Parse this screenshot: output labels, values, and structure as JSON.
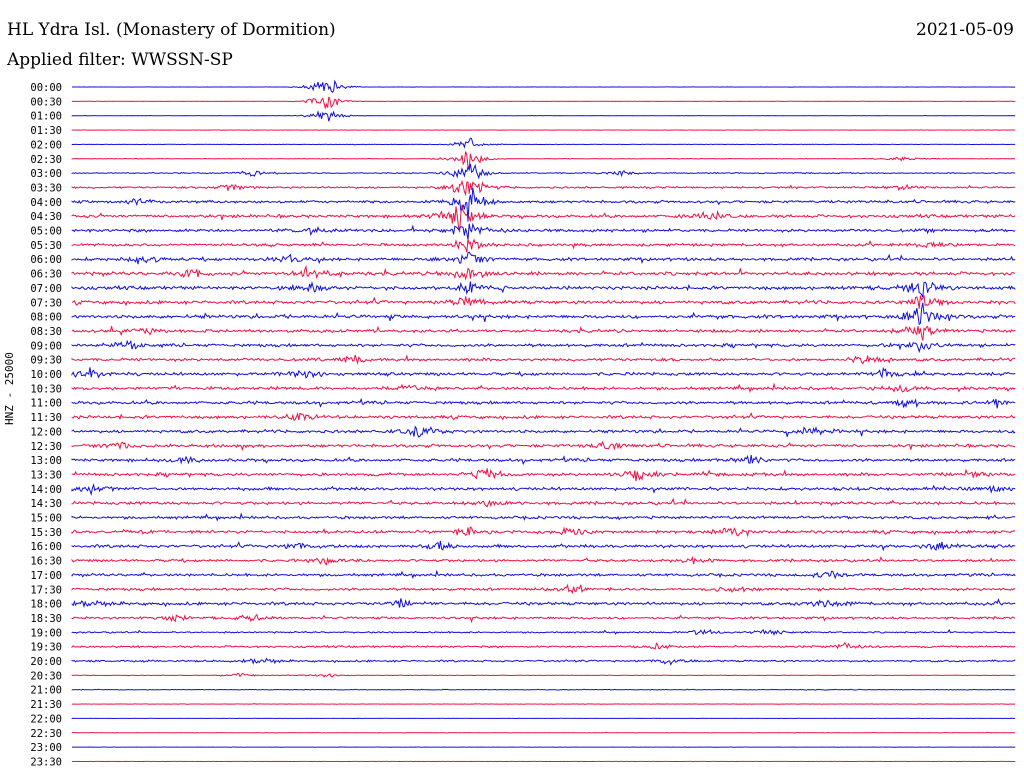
{
  "header": {
    "station": "HL Ydra Isl. (Monastery of Dormition)",
    "filter": "Applied filter: WWSSN-SP",
    "date": "2021-05-09",
    "channel_label": "HNZ - 25000"
  },
  "colors": {
    "blue_trace": "#1010d8",
    "red_trace": "#ee1144"
  },
  "chart_data": {
    "type": "line",
    "title": "HL Ydra Isl. (Monastery of Dormition)",
    "subtitle": "Applied filter: WWSSN-SP",
    "ylabel": "HNZ - 25000",
    "grid": false,
    "legend": "none",
    "rows": [
      {
        "label": "00:00",
        "color": "blue",
        "level": 0.05,
        "events": [
          {
            "x": 0.27,
            "amp": 14
          }
        ]
      },
      {
        "label": "00:30",
        "color": "red",
        "level": 0.05,
        "events": [
          {
            "x": 0.27,
            "amp": 12
          }
        ]
      },
      {
        "label": "01:00",
        "color": "blue",
        "level": 0.08,
        "events": [
          {
            "x": 0.27,
            "amp": 10
          }
        ]
      },
      {
        "label": "01:30",
        "color": "red",
        "level": 0.06,
        "events": []
      },
      {
        "label": "02:00",
        "color": "blue",
        "level": 0.1,
        "events": [
          {
            "x": 0.42,
            "amp": 8
          }
        ]
      },
      {
        "label": "02:30",
        "color": "red",
        "level": 0.15,
        "events": [
          {
            "x": 0.42,
            "amp": 14
          },
          {
            "x": 0.88,
            "amp": 4
          }
        ]
      },
      {
        "label": "03:00",
        "color": "blue",
        "level": 0.3,
        "events": [
          {
            "x": 0.19,
            "amp": 4
          },
          {
            "x": 0.42,
            "amp": 16
          },
          {
            "x": 0.58,
            "amp": 4
          }
        ]
      },
      {
        "label": "03:30",
        "color": "red",
        "level": 0.5,
        "events": [
          {
            "x": 0.17,
            "amp": 5
          },
          {
            "x": 0.42,
            "amp": 18
          },
          {
            "x": 0.88,
            "amp": 3
          }
        ]
      },
      {
        "label": "04:00",
        "color": "blue",
        "level": 0.7,
        "events": [
          {
            "x": 0.07,
            "amp": 5
          },
          {
            "x": 0.42,
            "amp": 22
          }
        ]
      },
      {
        "label": "04:30",
        "color": "red",
        "level": 0.8,
        "events": [
          {
            "x": 0.41,
            "amp": 20
          },
          {
            "x": 0.68,
            "amp": 8
          }
        ]
      },
      {
        "label": "05:00",
        "color": "blue",
        "level": 0.8,
        "events": [
          {
            "x": 0.26,
            "amp": 6
          },
          {
            "x": 0.42,
            "amp": 14
          }
        ]
      },
      {
        "label": "05:30",
        "color": "red",
        "level": 0.7,
        "events": [
          {
            "x": 0.42,
            "amp": 10
          },
          {
            "x": 0.91,
            "amp": 6
          }
        ]
      },
      {
        "label": "06:00",
        "color": "blue",
        "level": 0.8,
        "events": [
          {
            "x": 0.08,
            "amp": 6
          },
          {
            "x": 0.23,
            "amp": 5
          },
          {
            "x": 0.42,
            "amp": 12
          }
        ]
      },
      {
        "label": "06:30",
        "color": "red",
        "level": 0.9,
        "events": [
          {
            "x": 0.13,
            "amp": 6
          },
          {
            "x": 0.25,
            "amp": 9
          },
          {
            "x": 0.42,
            "amp": 10
          }
        ]
      },
      {
        "label": "07:00",
        "color": "blue",
        "level": 0.9,
        "events": [
          {
            "x": 0.25,
            "amp": 8
          },
          {
            "x": 0.42,
            "amp": 9
          },
          {
            "x": 0.9,
            "amp": 18
          }
        ]
      },
      {
        "label": "07:30",
        "color": "red",
        "level": 0.9,
        "events": [
          {
            "x": 0.42,
            "amp": 8
          },
          {
            "x": 0.9,
            "amp": 12
          }
        ]
      },
      {
        "label": "08:00",
        "color": "blue",
        "level": 0.9,
        "events": [
          {
            "x": 0.9,
            "amp": 20
          }
        ]
      },
      {
        "label": "08:30",
        "color": "red",
        "level": 0.8,
        "events": [
          {
            "x": 0.08,
            "amp": 5
          },
          {
            "x": 0.9,
            "amp": 10
          }
        ]
      },
      {
        "label": "09:00",
        "color": "blue",
        "level": 0.8,
        "events": [
          {
            "x": 0.06,
            "amp": 5
          },
          {
            "x": 0.9,
            "amp": 8
          }
        ]
      },
      {
        "label": "09:30",
        "color": "red",
        "level": 0.8,
        "events": [
          {
            "x": 0.3,
            "amp": 5
          },
          {
            "x": 0.84,
            "amp": 5
          }
        ]
      },
      {
        "label": "10:00",
        "color": "blue",
        "level": 0.8,
        "events": [
          {
            "x": 0.02,
            "amp": 7
          },
          {
            "x": 0.25,
            "amp": 6
          },
          {
            "x": 0.86,
            "amp": 6
          }
        ]
      },
      {
        "label": "10:30",
        "color": "red",
        "level": 0.8,
        "events": [
          {
            "x": 0.36,
            "amp": 5
          },
          {
            "x": 0.88,
            "amp": 6
          }
        ]
      },
      {
        "label": "11:00",
        "color": "blue",
        "level": 0.8,
        "events": [
          {
            "x": 0.88,
            "amp": 6
          },
          {
            "x": 0.98,
            "amp": 6
          }
        ]
      },
      {
        "label": "11:30",
        "color": "red",
        "level": 0.8,
        "events": [
          {
            "x": 0.24,
            "amp": 5
          }
        ]
      },
      {
        "label": "12:00",
        "color": "blue",
        "level": 0.8,
        "events": [
          {
            "x": 0.37,
            "amp": 9
          },
          {
            "x": 0.78,
            "amp": 6
          }
        ]
      },
      {
        "label": "12:30",
        "color": "red",
        "level": 0.8,
        "events": [
          {
            "x": 0.05,
            "amp": 6
          },
          {
            "x": 0.57,
            "amp": 6
          }
        ]
      },
      {
        "label": "13:00",
        "color": "blue",
        "level": 0.8,
        "events": [
          {
            "x": 0.12,
            "amp": 5
          },
          {
            "x": 0.72,
            "amp": 6
          }
        ]
      },
      {
        "label": "13:30",
        "color": "red",
        "level": 0.8,
        "events": [
          {
            "x": 0.44,
            "amp": 8
          },
          {
            "x": 0.6,
            "amp": 9
          },
          {
            "x": 0.95,
            "amp": 5
          }
        ]
      },
      {
        "label": "14:00",
        "color": "blue",
        "level": 0.8,
        "events": [
          {
            "x": 0.02,
            "amp": 5
          },
          {
            "x": 0.98,
            "amp": 5
          }
        ]
      },
      {
        "label": "14:30",
        "color": "red",
        "level": 0.8,
        "events": [
          {
            "x": 0.44,
            "amp": 5
          }
        ]
      },
      {
        "label": "15:00",
        "color": "blue",
        "level": 0.7,
        "events": []
      },
      {
        "label": "15:30",
        "color": "red",
        "level": 0.8,
        "events": [
          {
            "x": 0.42,
            "amp": 6
          },
          {
            "x": 0.53,
            "amp": 6
          },
          {
            "x": 0.7,
            "amp": 6
          }
        ]
      },
      {
        "label": "16:00",
        "color": "blue",
        "level": 0.8,
        "events": [
          {
            "x": 0.24,
            "amp": 6
          },
          {
            "x": 0.39,
            "amp": 6
          },
          {
            "x": 0.92,
            "amp": 5
          }
        ]
      },
      {
        "label": "16:30",
        "color": "red",
        "level": 0.7,
        "events": [
          {
            "x": 0.27,
            "amp": 5
          },
          {
            "x": 0.66,
            "amp": 4
          }
        ]
      },
      {
        "label": "17:00",
        "color": "blue",
        "level": 0.7,
        "events": [
          {
            "x": 0.8,
            "amp": 5
          }
        ]
      },
      {
        "label": "17:30",
        "color": "red",
        "level": 0.7,
        "events": [
          {
            "x": 0.53,
            "amp": 5
          },
          {
            "x": 0.7,
            "amp": 5
          }
        ]
      },
      {
        "label": "18:00",
        "color": "blue",
        "level": 0.8,
        "events": [
          {
            "x": 0.02,
            "amp": 5
          },
          {
            "x": 0.35,
            "amp": 5
          },
          {
            "x": 0.8,
            "amp": 6
          }
        ]
      },
      {
        "label": "18:30",
        "color": "red",
        "level": 0.6,
        "events": [
          {
            "x": 0.11,
            "amp": 5
          },
          {
            "x": 0.19,
            "amp": 5
          }
        ]
      },
      {
        "label": "19:00",
        "color": "blue",
        "level": 0.4,
        "events": [
          {
            "x": 0.67,
            "amp": 5
          },
          {
            "x": 0.74,
            "amp": 4
          }
        ]
      },
      {
        "label": "19:30",
        "color": "red",
        "level": 0.5,
        "events": [
          {
            "x": 0.62,
            "amp": 4
          },
          {
            "x": 0.82,
            "amp": 5
          }
        ]
      },
      {
        "label": "20:00",
        "color": "blue",
        "level": 0.5,
        "events": [
          {
            "x": 0.2,
            "amp": 5
          },
          {
            "x": 0.63,
            "amp": 5
          }
        ]
      },
      {
        "label": "20:30",
        "color": "red",
        "level": 0.15,
        "events": [
          {
            "x": 0.18,
            "amp": 3
          },
          {
            "x": 0.27,
            "amp": 3
          }
        ]
      },
      {
        "label": "21:00",
        "color": "blue",
        "level": 0.2,
        "events": []
      },
      {
        "label": "21:30",
        "color": "red",
        "level": 0.1,
        "events": []
      },
      {
        "label": "22:00",
        "color": "blue",
        "level": 0.05,
        "events": []
      },
      {
        "label": "22:30",
        "color": "red",
        "level": 0.1,
        "events": []
      },
      {
        "label": "23:00",
        "color": "blue",
        "level": 0.05,
        "events": []
      },
      {
        "label": "23:30",
        "color": "red",
        "level": 0.04,
        "events": []
      }
    ]
  }
}
